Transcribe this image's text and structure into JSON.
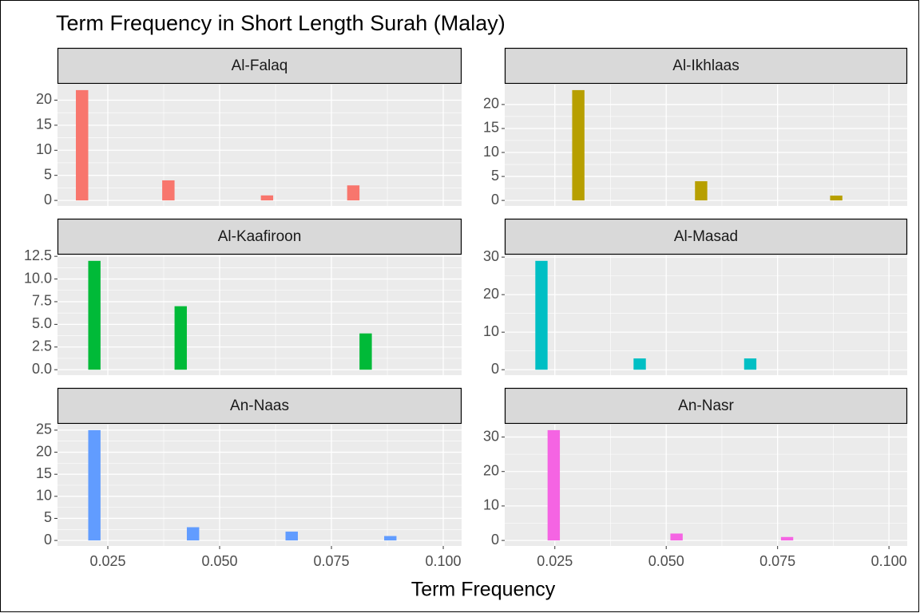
{
  "title": "Term Frequency in Short Length Surah (Malay)",
  "x_label": "Term Frequency",
  "chart_data": [
    {
      "type": "histogram",
      "title": "Al-Falaq",
      "color": "#F8766D",
      "grid": true,
      "bins": [
        0.01786,
        0.02062,
        0.02337,
        0.02613,
        0.02889,
        0.03165,
        0.0344,
        0.03716,
        0.03992,
        0.04267,
        0.04543,
        0.04819,
        0.05094,
        0.0537,
        0.05646,
        0.05922,
        0.06197,
        0.06473,
        0.06749,
        0.07024,
        0.073,
        0.07576,
        0.07851,
        0.08127
      ],
      "values": [
        22,
        0,
        0,
        0,
        0,
        0,
        0,
        4,
        0,
        0,
        0,
        0,
        0,
        0,
        0,
        1,
        0,
        0,
        0,
        0,
        0,
        0,
        3
      ],
      "xlim": [
        0.01375,
        0.1041
      ],
      "xticks": [
        0.025,
        {
          "value": 0.05,
          "label": "0.050"
        },
        0.075,
        {
          "value": 0.1,
          "label": "0.100"
        }
      ],
      "ylim": [
        -1.1,
        23.1
      ],
      "yticks": [
        0,
        5,
        10,
        15,
        20
      ]
    },
    {
      "type": "histogram",
      "title": "Al-Ikhlaas",
      "color": "#B79F00",
      "grid": true,
      "bins": [
        0.02889,
        0.03165,
        0.0344,
        0.03716,
        0.03992,
        0.04267,
        0.04543,
        0.04819,
        0.05094,
        0.0537,
        0.05646,
        0.05922,
        0.06197,
        0.06473,
        0.06749,
        0.07024,
        0.073,
        0.07576,
        0.07851,
        0.08127,
        0.08403,
        0.08679,
        0.08954
      ],
      "values": [
        23,
        0,
        0,
        0,
        0,
        0,
        0,
        0,
        0,
        0,
        4,
        0,
        0,
        0,
        0,
        0,
        0,
        0,
        0,
        0,
        0,
        1
      ],
      "xlim": [
        0.01375,
        0.1041
      ],
      "xticks": [
        0.025,
        {
          "value": 0.05,
          "label": "0.050"
        },
        0.075,
        {
          "value": 0.1,
          "label": "0.100"
        }
      ],
      "ylim": [
        -1.15,
        24.15
      ],
      "yticks": [
        0,
        5,
        10,
        15,
        20
      ]
    },
    {
      "type": "histogram",
      "title": "Al-Kaafiroon",
      "color": "#00BA38",
      "grid": true,
      "bins": [
        0.02062,
        0.02337,
        0.02613,
        0.02889,
        0.03165,
        0.0344,
        0.03716,
        0.03992,
        0.04267,
        0.04543,
        0.04819,
        0.05094,
        0.0537,
        0.05646,
        0.05922,
        0.06197,
        0.06473,
        0.06749,
        0.07024,
        0.073,
        0.07576,
        0.07851,
        0.08127,
        0.08403
      ],
      "values": [
        12,
        0,
        0,
        0,
        0,
        0,
        0,
        7,
        0,
        0,
        0,
        0,
        0,
        0,
        0,
        0,
        0,
        0,
        0,
        0,
        0,
        0,
        4
      ],
      "xlim": [
        0.01375,
        0.1041
      ],
      "xticks": [
        0.025,
        {
          "value": 0.05,
          "label": "0.050"
        },
        0.075,
        {
          "value": 0.1,
          "label": "0.100"
        }
      ],
      "ylim": [
        -0.6,
        12.6
      ],
      "yticks": [
        {
          "value": 0,
          "label": "0.0"
        },
        2.5,
        {
          "value": 5,
          "label": "5.0"
        },
        7.5,
        {
          "value": 10,
          "label": "10.0"
        },
        12.5
      ]
    },
    {
      "type": "histogram",
      "title": "Al-Masad",
      "color": "#00BFC4",
      "grid": true,
      "bins": [
        0.02062,
        0.02337,
        0.02613,
        0.02889,
        0.03165,
        0.0344,
        0.03716,
        0.03992,
        0.04267,
        0.04543,
        0.04819,
        0.05094,
        0.0537,
        0.05646,
        0.05922,
        0.06197,
        0.06473,
        0.06749,
        0.07024
      ],
      "values": [
        29,
        0,
        0,
        0,
        0,
        0,
        0,
        0,
        3,
        0,
        0,
        0,
        0,
        0,
        0,
        0,
        0,
        3
      ],
      "xlim": [
        0.01375,
        0.1041
      ],
      "xticks": [
        0.025,
        {
          "value": 0.05,
          "label": "0.050"
        },
        0.075,
        {
          "value": 0.1,
          "label": "0.100"
        }
      ],
      "ylim": [
        -1.45,
        30.45
      ],
      "yticks": [
        0,
        10,
        20,
        30
      ]
    },
    {
      "type": "histogram",
      "title": "An-Naas",
      "color": "#619CFF",
      "grid": true,
      "bins": [
        0.02062,
        0.02337,
        0.02613,
        0.02889,
        0.03165,
        0.0344,
        0.03716,
        0.03992,
        0.04267,
        0.04543,
        0.04819,
        0.05094,
        0.0537,
        0.05646,
        0.05922,
        0.06197,
        0.06473,
        0.06749,
        0.07024,
        0.073,
        0.07576,
        0.07851,
        0.08127,
        0.08403,
        0.08679,
        0.08954
      ],
      "values": [
        25,
        0,
        0,
        0,
        0,
        0,
        0,
        0,
        3,
        0,
        0,
        0,
        0,
        0,
        0,
        0,
        2,
        0,
        0,
        0,
        0,
        0,
        0,
        0,
        1
      ],
      "xlim": [
        0.01375,
        0.1041
      ],
      "xticks": [
        0.025,
        {
          "value": 0.05,
          "label": "0.050"
        },
        0.075,
        {
          "value": 0.1,
          "label": "0.100"
        }
      ],
      "ylim": [
        -1.25,
        26.25
      ],
      "yticks": [
        0,
        5,
        10,
        15,
        20,
        25
      ]
    },
    {
      "type": "histogram",
      "title": "An-Nasr",
      "color": "#F564E3",
      "grid": true,
      "bins": [
        0.02337,
        0.02613,
        0.02889,
        0.03165,
        0.0344,
        0.03716,
        0.03992,
        0.04267,
        0.04543,
        0.04819,
        0.05094,
        0.0537,
        0.05646,
        0.05922,
        0.06197,
        0.06473,
        0.06749,
        0.07024,
        0.073,
        0.07576,
        0.07851
      ],
      "values": [
        32,
        0,
        0,
        0,
        0,
        0,
        0,
        0,
        0,
        0,
        2,
        0,
        0,
        0,
        0,
        0,
        0,
        0,
        0,
        1
      ],
      "xlim": [
        0.01375,
        0.1041
      ],
      "xticks": [
        0.025,
        {
          "value": 0.05,
          "label": "0.050"
        },
        0.075,
        {
          "value": 0.1,
          "label": "0.100"
        }
      ],
      "ylim": [
        -1.6,
        33.6
      ],
      "yticks": [
        0,
        10,
        20,
        30
      ]
    }
  ]
}
